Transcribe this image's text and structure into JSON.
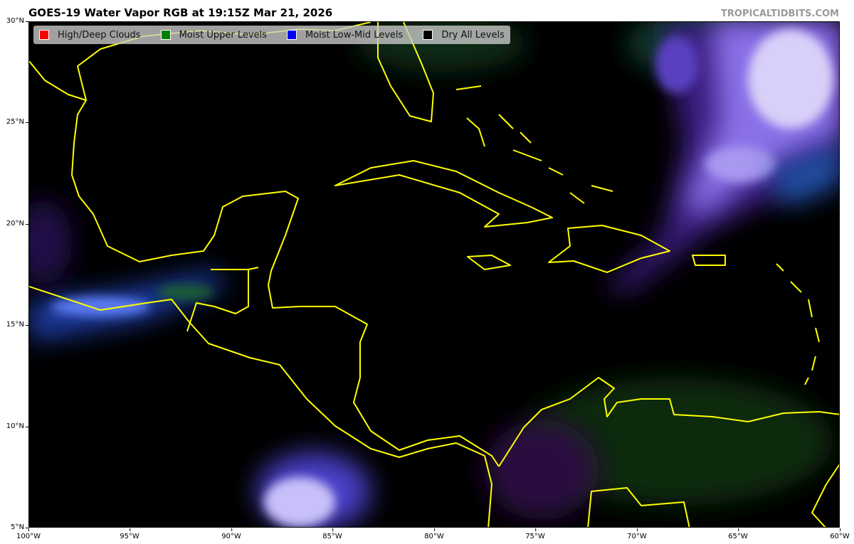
{
  "title": "GOES-19 Water Vapor RGB at 19:15Z Mar 21, 2026",
  "credit": "TROPICALTIDBITS.COM",
  "legend": [
    {
      "label": "High/Deep Clouds",
      "color": "#ff0000"
    },
    {
      "label": "Moist Upper Levels",
      "color": "#008000"
    },
    {
      "label": "Moist Low-Mid Levels",
      "color": "#0000ff"
    },
    {
      "label": "Dry All Levels",
      "color": "#000000"
    }
  ],
  "axes": {
    "lat_ticks": [
      "30°N",
      "25°N",
      "20°N",
      "15°N",
      "10°N",
      "5°N"
    ],
    "lon_ticks": [
      "100°W",
      "95°W",
      "90°W",
      "85°W",
      "80°W",
      "75°W",
      "70°W",
      "65°W",
      "60°W"
    ],
    "lon_range": [
      -100,
      -60
    ],
    "lat_range": [
      5,
      30
    ]
  },
  "coastline_color": "#ffff00"
}
